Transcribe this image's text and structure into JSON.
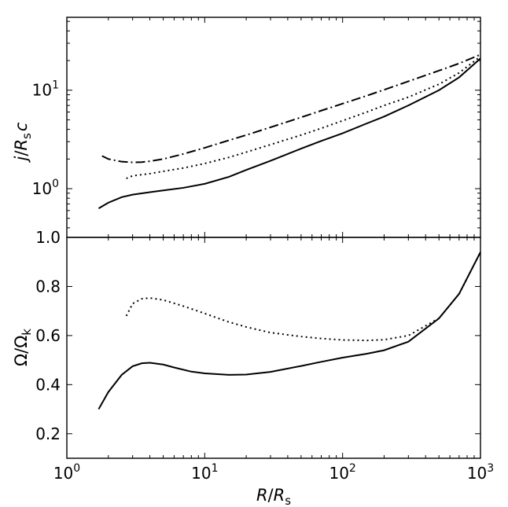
{
  "chart_data": [
    {
      "type": "line",
      "panel": "top",
      "xscale": "log",
      "yscale": "log",
      "xlim": [
        1,
        1000
      ],
      "ylim": [
        0.32,
        55
      ],
      "ylabel": "j/R_s c",
      "ylabel_parts": {
        "j": "j",
        "slash": "/",
        "R": "R",
        "s": "s",
        "c": "c"
      },
      "ytick_labels": [
        {
          "value": 1,
          "mantissa": "10",
          "exponent": "0"
        },
        {
          "value": 10,
          "mantissa": "10",
          "exponent": "1"
        }
      ],
      "series": [
        {
          "style": "solid",
          "x": [
            1.7,
            2,
            2.5,
            3,
            4,
            5,
            7,
            10,
            15,
            20,
            30,
            50,
            70,
            100,
            150,
            200,
            300,
            500,
            700,
            1000
          ],
          "y": [
            0.63,
            0.72,
            0.82,
            0.87,
            0.92,
            0.96,
            1.02,
            1.12,
            1.32,
            1.55,
            1.92,
            2.55,
            3.05,
            3.65,
            4.6,
            5.4,
            7.0,
            10.0,
            13.5,
            21
          ]
        },
        {
          "style": "dotted",
          "x": [
            2.7,
            3,
            4,
            5,
            7,
            10,
            15,
            20,
            30,
            50,
            70,
            100,
            150,
            200,
            300,
            500,
            700,
            1000
          ],
          "y": [
            1.27,
            1.35,
            1.42,
            1.5,
            1.62,
            1.8,
            2.08,
            2.35,
            2.8,
            3.5,
            4.1,
            4.9,
            6.0,
            7.0,
            8.5,
            11.5,
            15,
            22
          ]
        },
        {
          "style": "dashdot",
          "x": [
            1.8,
            2,
            2.5,
            3,
            3.5,
            4,
            5,
            7,
            10,
            15,
            20,
            30,
            50,
            70,
            100,
            150,
            200,
            300,
            500,
            700,
            1000
          ],
          "y": [
            2.15,
            2.0,
            1.88,
            1.85,
            1.86,
            1.9,
            2.0,
            2.25,
            2.6,
            3.1,
            3.5,
            4.2,
            5.3,
            6.2,
            7.3,
            8.8,
            10.1,
            12.3,
            15.8,
            18.7,
            23
          ]
        }
      ]
    },
    {
      "type": "line",
      "panel": "bottom",
      "xscale": "log",
      "yscale": "linear",
      "xlim": [
        1,
        1000
      ],
      "ylim": [
        0.1,
        1.0
      ],
      "xlabel": "R/R_s",
      "xlabel_parts": {
        "R": "R",
        "slash": "/",
        "R2": "R",
        "s": "s"
      },
      "ylabel": "Ω/Ω_k",
      "ylabel_parts": {
        "omega": "Ω",
        "slash": "/",
        "omega2": "Ω",
        "k": "k"
      },
      "ytick_labels": [
        "0.2",
        "0.4",
        "0.6",
        "0.8",
        "1.0"
      ],
      "ytick_values": [
        0.2,
        0.4,
        0.6,
        0.8,
        1.0
      ],
      "xtick_labels": [
        {
          "value": 1,
          "mantissa": "10",
          "exponent": "0"
        },
        {
          "value": 10,
          "mantissa": "10",
          "exponent": "1"
        },
        {
          "value": 100,
          "mantissa": "10",
          "exponent": "2"
        },
        {
          "value": 1000,
          "mantissa": "10",
          "exponent": "3"
        }
      ],
      "series": [
        {
          "style": "solid",
          "x": [
            1.7,
            2,
            2.5,
            3,
            3.5,
            4,
            5,
            6,
            8,
            10,
            15,
            20,
            30,
            50,
            70,
            100,
            150,
            200,
            300,
            500,
            700,
            1000
          ],
          "y": [
            0.3,
            0.37,
            0.44,
            0.475,
            0.487,
            0.489,
            0.482,
            0.47,
            0.453,
            0.446,
            0.44,
            0.441,
            0.452,
            0.476,
            0.493,
            0.51,
            0.526,
            0.54,
            0.575,
            0.67,
            0.77,
            0.94
          ]
        },
        {
          "style": "dotted",
          "x": [
            2.7,
            3,
            3.5,
            4,
            5,
            7,
            10,
            15,
            20,
            30,
            50,
            70,
            100,
            150,
            200,
            300,
            500,
            700,
            1000
          ],
          "y": [
            0.68,
            0.73,
            0.75,
            0.753,
            0.745,
            0.72,
            0.69,
            0.655,
            0.635,
            0.612,
            0.596,
            0.588,
            0.582,
            0.58,
            0.583,
            0.6,
            0.67,
            0.77,
            0.94
          ]
        }
      ]
    }
  ]
}
